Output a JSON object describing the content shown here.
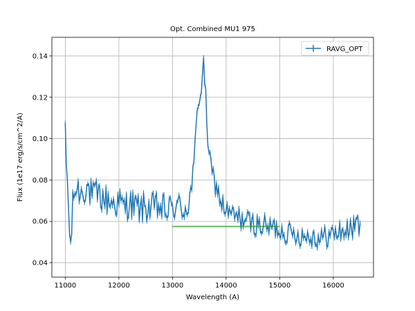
{
  "chart_data": {
    "type": "line",
    "title": "Opt. Combined MU1 975",
    "xlabel": "Wavelength (A)",
    "ylabel": "Flux (1e17 erg/s/cm^2/A)",
    "xlim": [
      10750,
      16750
    ],
    "ylim": [
      0.033,
      0.149
    ],
    "xticks": [
      11000,
      12000,
      13000,
      14000,
      15000,
      16000
    ],
    "yticks": [
      0.04,
      0.06,
      0.08,
      0.1,
      0.12,
      0.14
    ],
    "xtick_labels": [
      "11000",
      "12000",
      "13000",
      "14000",
      "15000",
      "16000"
    ],
    "ytick_labels": [
      "0.04",
      "0.06",
      "0.08",
      "0.10",
      "0.12",
      "0.14"
    ],
    "grid": true,
    "legend": {
      "placement": "top-right",
      "entries": [
        "RAVG_OPT"
      ]
    },
    "series": [
      {
        "name": "RAVG_OPT",
        "color": "#1f77b4",
        "x_start": 11000,
        "x_step": 20,
        "anchors": [
          [
            11000,
            0.104
          ],
          [
            11020,
            0.087
          ],
          [
            11050,
            0.075
          ],
          [
            11080,
            0.053
          ],
          [
            11100,
            0.048
          ],
          [
            11150,
            0.072
          ],
          [
            11200,
            0.076
          ],
          [
            11300,
            0.074
          ],
          [
            11400,
            0.077
          ],
          [
            11500,
            0.072
          ],
          [
            11600,
            0.073
          ],
          [
            11700,
            0.071
          ],
          [
            11800,
            0.07
          ],
          [
            11900,
            0.069
          ],
          [
            12000,
            0.069
          ],
          [
            12100,
            0.067
          ],
          [
            12200,
            0.069
          ],
          [
            12300,
            0.067
          ],
          [
            12400,
            0.066
          ],
          [
            12500,
            0.067
          ],
          [
            12600,
            0.066
          ],
          [
            12700,
            0.067
          ],
          [
            12800,
            0.066
          ],
          [
            12900,
            0.065
          ],
          [
            13000,
            0.066
          ],
          [
            13050,
            0.068
          ],
          [
            13100,
            0.067
          ],
          [
            13200,
            0.066
          ],
          [
            13250,
            0.067
          ],
          [
            13300,
            0.068
          ],
          [
            13350,
            0.076
          ],
          [
            13400,
            0.086
          ],
          [
            13430,
            0.1
          ],
          [
            13460,
            0.112
          ],
          [
            13490,
            0.12
          ],
          [
            13520,
            0.122
          ],
          [
            13550,
            0.125
          ],
          [
            13570,
            0.14
          ],
          [
            13600,
            0.128
          ],
          [
            13630,
            0.115
          ],
          [
            13660,
            0.1
          ],
          [
            13700,
            0.088
          ],
          [
            13750,
            0.082
          ],
          [
            13800,
            0.078
          ],
          [
            13850,
            0.074
          ],
          [
            13900,
            0.07
          ],
          [
            13950,
            0.067
          ],
          [
            14000,
            0.065
          ],
          [
            14100,
            0.063
          ],
          [
            14200,
            0.062
          ],
          [
            14300,
            0.061
          ],
          [
            14400,
            0.06
          ],
          [
            14500,
            0.059
          ],
          [
            14600,
            0.058
          ],
          [
            14700,
            0.058
          ],
          [
            14800,
            0.057
          ],
          [
            14900,
            0.057
          ],
          [
            15000,
            0.056
          ],
          [
            15100,
            0.055
          ],
          [
            15200,
            0.054
          ],
          [
            15300,
            0.054
          ],
          [
            15400,
            0.053
          ],
          [
            15500,
            0.053
          ],
          [
            15600,
            0.053
          ],
          [
            15700,
            0.052
          ],
          [
            15800,
            0.052
          ],
          [
            15900,
            0.053
          ],
          [
            16000,
            0.054
          ],
          [
            16100,
            0.055
          ],
          [
            16200,
            0.055
          ],
          [
            16300,
            0.056
          ],
          [
            16400,
            0.057
          ],
          [
            16450,
            0.06
          ],
          [
            16500,
            0.055
          ]
        ]
      },
      {
        "name": "",
        "color": "#2ca02c",
        "x": [
          13000,
          15000
        ],
        "y": [
          0.0575,
          0.0575
        ]
      }
    ]
  }
}
